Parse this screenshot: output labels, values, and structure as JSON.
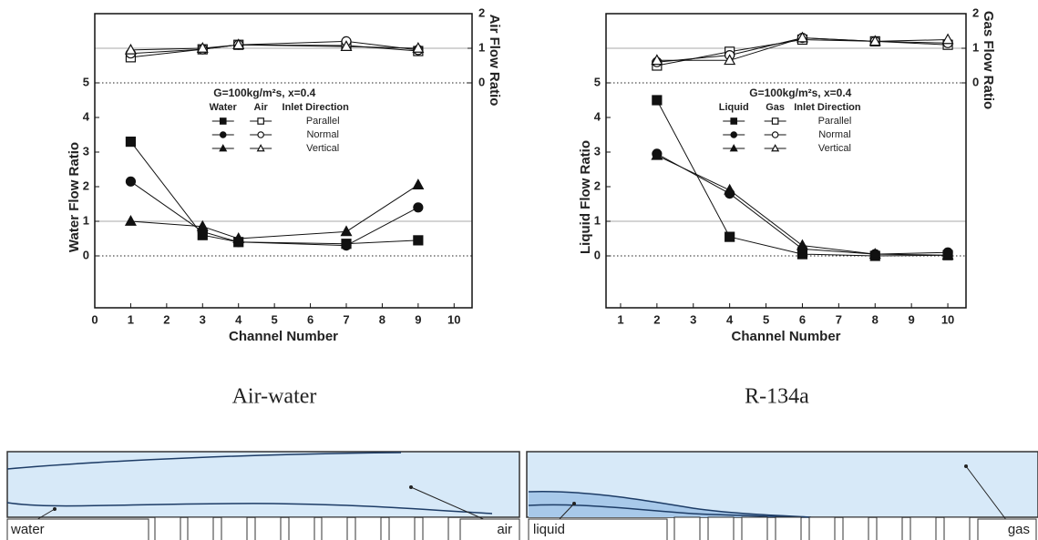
{
  "chart_data": [
    {
      "type": "line",
      "caption": "Air-water",
      "xlabel": "Channel Number",
      "ylabel": "Water Flow Ratio",
      "y2label": "Air Flow Ratio",
      "annotation": "G=100kg/m²s, x=0.4",
      "legend": {
        "headers": [
          "Water",
          "Air",
          "Inlet Direction"
        ]
      },
      "x": [
        1,
        3,
        4,
        7,
        9
      ],
      "xlim": [
        0,
        10.5
      ],
      "xticks": [
        0,
        1,
        2,
        3,
        4,
        5,
        6,
        7,
        8,
        9,
        10
      ],
      "ylim": [
        -1.5,
        7
      ],
      "yticks": [
        0,
        1,
        2,
        3,
        4,
        5
      ],
      "y2lim": [
        -6.5,
        2
      ],
      "y2ticks": [
        0,
        1,
        2
      ],
      "ref_lines": [
        {
          "axis": "y",
          "value": 0,
          "style": "dotted"
        },
        {
          "axis": "y",
          "value": 1,
          "style": "solid"
        },
        {
          "axis": "y",
          "value": 5,
          "style": "dotted"
        },
        {
          "axis": "y2",
          "value": 1,
          "style": "solid"
        }
      ],
      "series": [
        {
          "name": "Parallel",
          "marker": "square",
          "color": "#111111",
          "values": [
            3.3,
            0.6,
            0.4,
            0.35,
            0.45
          ]
        },
        {
          "name": "Normal",
          "marker": "circle",
          "color": "#111111",
          "values": [
            2.15,
            0.7,
            0.4,
            0.3,
            1.4
          ]
        },
        {
          "name": "Vertical",
          "marker": "triangle",
          "color": "#111111",
          "values": [
            1.0,
            0.85,
            0.5,
            0.7,
            2.05
          ]
        }
      ],
      "y2_series": [
        {
          "marker": "square",
          "color": "#ffffff",
          "axis": "y2",
          "values": [
            0.74,
            0.97,
            1.1,
            1.08,
            0.92
          ]
        },
        {
          "marker": "circle",
          "color": "#ffffff",
          "axis": "y2",
          "values": [
            0.85,
            0.97,
            1.1,
            1.2,
            0.95
          ]
        },
        {
          "marker": "triangle",
          "color": "#ffffff",
          "axis": "y2",
          "values": [
            0.95,
            1.0,
            1.1,
            1.05,
            1.0
          ]
        }
      ]
    },
    {
      "type": "line",
      "caption": "R-134a",
      "xlabel": "Channel Number",
      "ylabel": "Liquid Flow Ratio",
      "y2label": "Gas Flow Ratio",
      "annotation": "G=100kg/m²s, x=0.4",
      "legend": {
        "headers": [
          "Liquid",
          "Gas",
          "Inlet Direction"
        ]
      },
      "x": [
        2,
        4,
        6,
        8,
        10
      ],
      "xlim": [
        0.6,
        10.5
      ],
      "xticks": [
        1,
        2,
        3,
        4,
        5,
        6,
        7,
        8,
        9,
        10
      ],
      "ylim": [
        -1.5,
        7
      ],
      "yticks": [
        0,
        1,
        2,
        3,
        4,
        5
      ],
      "y2lim": [
        -6.5,
        2
      ],
      "y2ticks": [
        0,
        1,
        2
      ],
      "ref_lines": [
        {
          "axis": "y",
          "value": 0,
          "style": "dotted"
        },
        {
          "axis": "y",
          "value": 1,
          "style": "solid"
        },
        {
          "axis": "y",
          "value": 5,
          "style": "dotted"
        },
        {
          "axis": "y2",
          "value": 1,
          "style": "solid"
        }
      ],
      "series": [
        {
          "name": "Parallel",
          "marker": "square",
          "color": "#111111",
          "values": [
            4.5,
            0.55,
            0.05,
            0.0,
            0.02
          ]
        },
        {
          "name": "Normal",
          "marker": "circle",
          "color": "#111111",
          "values": [
            2.95,
            1.8,
            0.2,
            0.05,
            0.1
          ]
        },
        {
          "name": "Vertical",
          "marker": "triangle",
          "color": "#111111",
          "values": [
            2.9,
            1.9,
            0.3,
            0.05,
            0.02
          ]
        }
      ],
      "y2_series": [
        {
          "marker": "square",
          "color": "#ffffff",
          "axis": "y2",
          "values": [
            0.5,
            0.9,
            1.25,
            1.2,
            1.1
          ]
        },
        {
          "marker": "circle",
          "color": "#ffffff",
          "axis": "y2",
          "values": [
            0.6,
            0.8,
            1.3,
            1.2,
            1.15
          ]
        },
        {
          "marker": "triangle",
          "color": "#ffffff",
          "axis": "y2",
          "values": [
            0.65,
            0.65,
            1.3,
            1.2,
            1.25
          ]
        }
      ]
    }
  ],
  "diagrams": [
    {
      "inlet_label": "water",
      "outlet_label": "air"
    },
    {
      "inlet_label": "liquid",
      "outlet_label": "gas"
    }
  ]
}
